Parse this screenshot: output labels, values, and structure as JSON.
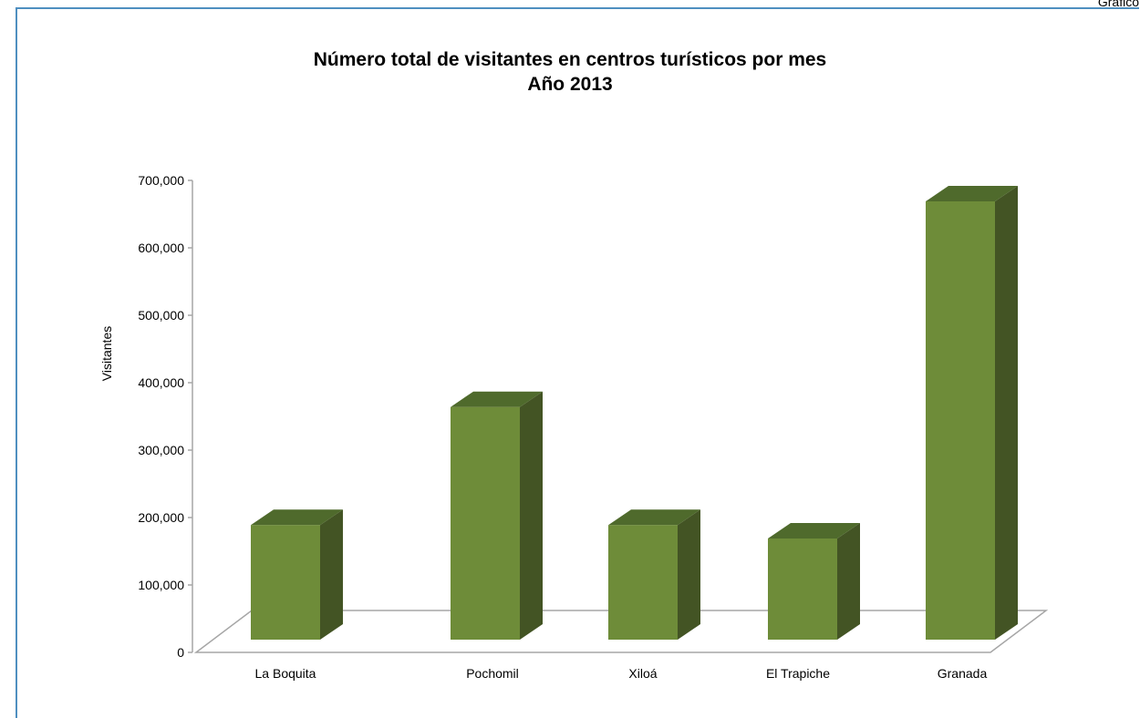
{
  "chart_data": {
    "type": "bar",
    "title": "Número total de visitantes en centros turísticos por mes",
    "subtitle": "Año 2013",
    "xlabel": "",
    "ylabel": "Visitantes",
    "categories": [
      "La Boquita",
      "Pochomil",
      "Xiloá",
      "El Trapiche",
      "Granada"
    ],
    "values": [
      170000,
      345000,
      170000,
      150000,
      650000
    ],
    "ylim": [
      0,
      700000
    ],
    "y_ticks": [
      "0",
      "100,000",
      "200,000",
      "300,000",
      "400,000",
      "500,000",
      "600,000",
      "700,000"
    ],
    "grid": false,
    "legend": "none",
    "colors": {
      "front": "#6e8c39",
      "top": "#4f6a2c",
      "side": "#435424",
      "floor": "#a6a6a6",
      "frame": "#4f8fc0"
    },
    "three_d": true
  },
  "corner_text": "Gráfico"
}
